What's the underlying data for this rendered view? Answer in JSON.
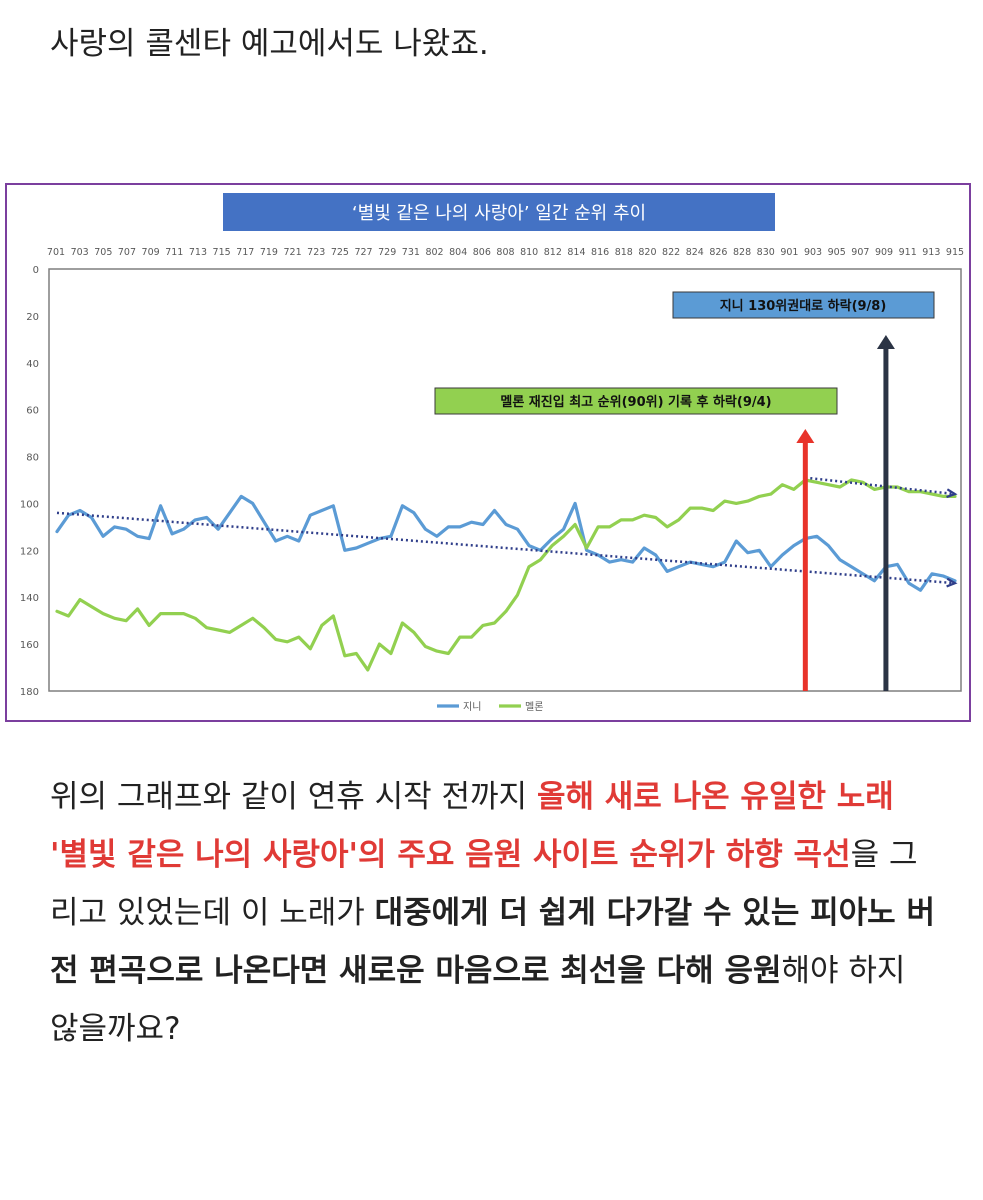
{
  "intro": {
    "text": "사랑의 콜센타 예고에서도 나왔죠."
  },
  "body": {
    "p1": "위의 그래프와 같이 연휴 시작 전까지 ",
    "r1": "올해 새로 나온 유일한 노래 '별빛 같은 나의 사랑아'의 주요 음원 사이트 순위가 하향 곡선",
    "p2": "을 그리고 있었는데 이 노래가 ",
    "b1": "대중에게 더 쉽게 다가갈 수 있는 피아노 버전 편곡으로 나온다면 새로운 마음으로 최선을 다해 응원",
    "p3": "해야 하지 않을까요?"
  },
  "colors": {
    "genie": "#5b9bd5",
    "melon": "#92d050",
    "title_bg": "#4472c4",
    "arrow_red": "#e8332a",
    "arrow_dark": "#2b3445",
    "trend": "#2f3e8a",
    "frame": "#7b3f9e"
  },
  "chart_data": {
    "type": "line",
    "title": "‘별빛 같은 나의 사랑아’ 일간 순위 추이",
    "x_tick_labels": [
      "701",
      "703",
      "705",
      "707",
      "709",
      "711",
      "713",
      "715",
      "717",
      "719",
      "721",
      "723",
      "725",
      "727",
      "729",
      "731",
      "802",
      "804",
      "806",
      "808",
      "810",
      "812",
      "814",
      "816",
      "818",
      "820",
      "822",
      "824",
      "826",
      "828",
      "830",
      "901",
      "903",
      "905",
      "907",
      "909",
      "911",
      "913",
      "915"
    ],
    "y_tick_labels": [
      "0",
      "20",
      "40",
      "60",
      "80",
      "100",
      "120",
      "140",
      "160",
      "180"
    ],
    "ylim": [
      0,
      180
    ],
    "y_inverted": true,
    "legend_position": "bottom",
    "series": [
      {
        "name": "지니",
        "values": [
          112,
          105,
          103,
          106,
          114,
          110,
          111,
          114,
          115,
          101,
          113,
          111,
          107,
          106,
          111,
          104,
          97,
          100,
          108,
          116,
          114,
          116,
          105,
          103,
          101,
          120,
          119,
          117,
          115,
          114,
          101,
          104,
          111,
          114,
          110,
          110,
          108,
          109,
          103,
          109,
          111,
          118,
          120,
          115,
          111,
          100,
          120,
          122,
          125,
          124,
          125,
          119,
          122,
          129,
          127,
          125,
          126,
          127,
          125,
          116,
          121,
          120,
          127,
          122,
          118,
          115,
          114,
          118,
          124,
          127,
          130,
          133,
          127,
          126,
          134,
          137,
          130,
          131,
          133
        ]
      },
      {
        "name": "멜론",
        "values": [
          146,
          148,
          141,
          144,
          147,
          149,
          150,
          145,
          152,
          147,
          147,
          147,
          149,
          153,
          154,
          155,
          152,
          149,
          153,
          158,
          159,
          157,
          162,
          152,
          148,
          165,
          164,
          171,
          160,
          164,
          151,
          155,
          161,
          163,
          164,
          157,
          157,
          152,
          151,
          146,
          139,
          127,
          124,
          118,
          114,
          109,
          119,
          110,
          110,
          107,
          107,
          105,
          106,
          110,
          107,
          102,
          102,
          103,
          99,
          100,
          99,
          97,
          96,
          92,
          94,
          90,
          91,
          92,
          93,
          90,
          91,
          94,
          93,
          93,
          95,
          95,
          96,
          97,
          97
        ]
      }
    ],
    "trendlines": [
      {
        "series": "지니",
        "from": [
          0,
          104
        ],
        "to": [
          78,
          134
        ]
      },
      {
        "series": "melon-recent",
        "from": [
          65,
          89
        ],
        "to": [
          78,
          96
        ]
      }
    ],
    "annotations": [
      {
        "text": "멜론 재진입 최고 순위(90위) 기록 후 하락(9/4)",
        "box_color": "#92d050",
        "arrow_index": 65,
        "arrow_color": "#e8332a"
      },
      {
        "text": "지니 130위권대로 하락(9/8)",
        "box_color": "#5b9bd5",
        "arrow_index": 72,
        "arrow_color": "#2b3445"
      }
    ]
  }
}
